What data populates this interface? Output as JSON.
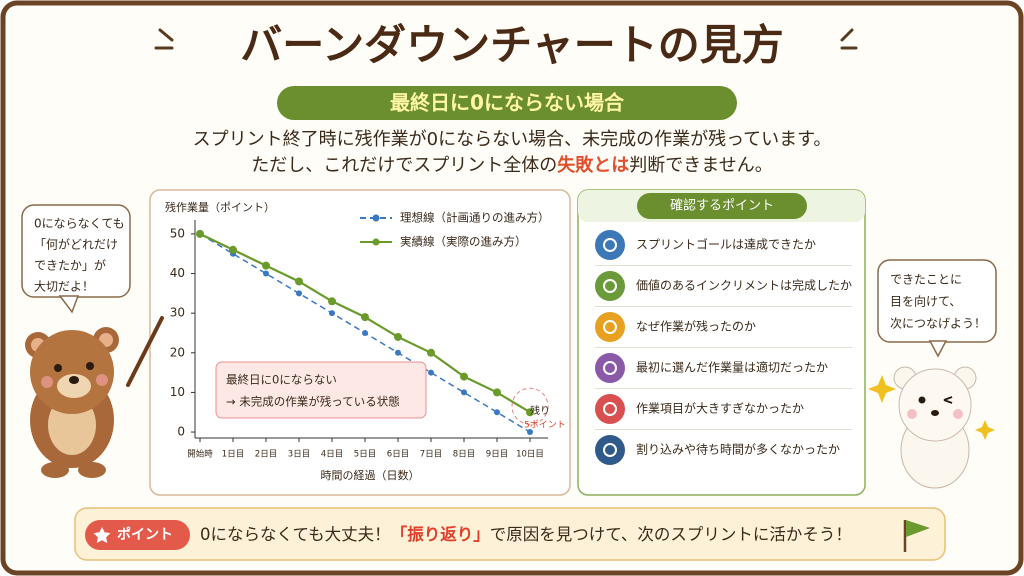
{
  "header": {
    "title": "バーンダウンチャートの見方",
    "subtitle": "最終日に0にならない場合"
  },
  "description": {
    "line1": "スプリント終了時に残作業が0にならない場合、未完成の作業が残っています。",
    "line2_pre": "ただし、これだけでスプリント全体の",
    "line2_highlight": "失敗とは",
    "line2_post": "判断できません。"
  },
  "chart_data": {
    "type": "line",
    "y_label": "残作業量（ポイント）",
    "x_label": "時間の経過（日数）",
    "categories": [
      "開始時",
      "1日目",
      "2日目",
      "3日目",
      "4日目",
      "5日目",
      "6日目",
      "7日目",
      "8日目",
      "9日目",
      "10日目"
    ],
    "series": [
      {
        "name": "理想線（計画通りの進み方）",
        "color": "#3a78c2",
        "values": [
          50,
          45,
          40,
          35,
          30,
          25,
          20,
          15,
          10,
          5,
          0
        ]
      },
      {
        "name": "実績線（実際の進み方）",
        "color": "#6a9a2a",
        "values": [
          50,
          46,
          42,
          38,
          33,
          29,
          24,
          20,
          14,
          10,
          5
        ]
      }
    ],
    "ylim": [
      -1.5,
      52
    ],
    "yticks": [
      0,
      10,
      20,
      30,
      40,
      50
    ],
    "annotation": {
      "line1": "最終日に0にならない",
      "line2": "→ 未完成の作業が残っている状態"
    },
    "remain": {
      "label": "残り",
      "points": "5ポイント"
    }
  },
  "checklist": {
    "title": "確認するポイント",
    "items": [
      "スプリントゴールは達成できたか",
      "価値のあるインクリメントは完成したか",
      "なぜ作業が残ったのか",
      "最初に選んだ作業量は適切だったか",
      "作業項目が大きすぎなかったか",
      "割り込みや待ち時間が多くなかったか"
    ]
  },
  "left_bubble": [
    "0にならなくても",
    "「何がどれだけ",
    "できたか」が",
    "大切だよ！"
  ],
  "right_bubble": [
    "できたことに",
    "目を向けて、",
    "次につなげよう！"
  ],
  "footer": {
    "badge": "ポイント",
    "pre": "0にならなくても大丈夫！",
    "highlight": "「振り返り」",
    "post": "で原因を見つけて、次のスプリントに活かそう！"
  }
}
